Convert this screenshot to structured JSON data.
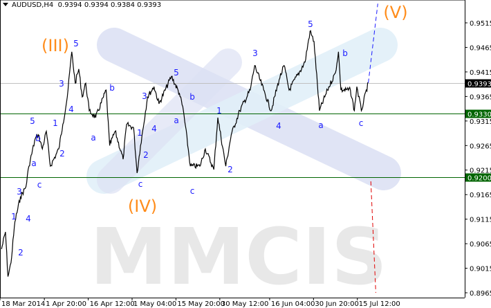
{
  "header": {
    "symbol": "AUDUSD,H4",
    "ohlc": "0.9394 0.9394 0.9384 0.9393",
    "menu_icon": "triangle-down-icon"
  },
  "watermark": {
    "text": "MMCIS",
    "colors": [
      "#e2f0f9",
      "#dde2f4",
      "#e8e8e8"
    ]
  },
  "colors": {
    "price": "#000000",
    "support": "#006400",
    "bid_line": "#c0c0c0",
    "wave_minor": "#1a1aff",
    "wave_major": "#ff8c1a",
    "forecast_up": "#1a1aff",
    "forecast_down": "#e00000"
  },
  "chart_data": {
    "type": "line",
    "title": "AUDUSD,H4",
    "ylim": [
      0.8965,
      0.957
    ],
    "yticks": [
      "0.9515",
      "0.9465",
      "0.9415",
      "0.9365",
      "0.9315",
      "0.9265",
      "0.9215",
      "0.9165",
      "0.9115",
      "0.9065",
      "0.9015",
      "0.8965"
    ],
    "xticks": [
      {
        "date": "2014-03-18 00:00",
        "label": "18 Mar 2014"
      },
      {
        "date": "2014-04-01 20:00",
        "label": "1 Apr 20:00"
      },
      {
        "date": "2014-04-16 12:00",
        "label": "16 Apr 12:00"
      },
      {
        "date": "2014-05-01 04:00",
        "label": "1 May 04:00"
      },
      {
        "date": "2014-05-15 20:00",
        "label": "15 May 20:00"
      },
      {
        "date": "2014-05-30 12:00",
        "label": "30 May 12:00"
      },
      {
        "date": "2014-06-16 04:00",
        "label": "16 Jun 04:00"
      },
      {
        "date": "2014-06-30 20:00",
        "label": "30 Jun 20:00"
      },
      {
        "date": "2014-07-15 12:00",
        "label": "15 Jul 12:00"
      }
    ],
    "levels": [
      {
        "price": 0.933,
        "label": "0.9330",
        "kind": "support"
      },
      {
        "price": 0.92,
        "label": "0.9200",
        "kind": "support"
      },
      {
        "price": 0.9393,
        "label": "0.9393",
        "kind": "bid"
      }
    ],
    "series": [
      {
        "points": [
          [
            "2014-03-18 12:00",
            0.9054
          ],
          [
            "2014-03-19 20:00",
            0.9089
          ],
          [
            "2014-03-20 16:00",
            0.8998
          ],
          [
            "2014-03-21 16:00",
            0.9026
          ],
          [
            "2014-03-23 00:00",
            0.911
          ],
          [
            "2014-03-24 20:00",
            0.916
          ],
          [
            "2014-03-26 16:00",
            0.9181
          ],
          [
            "2014-03-27 16:00",
            0.9223
          ],
          [
            "2014-03-29 20:00",
            0.928
          ],
          [
            "2014-03-30 20:00",
            0.9287
          ],
          [
            "2014-04-01 04:00",
            0.9258
          ],
          [
            "2014-04-02 12:00",
            0.9294
          ],
          [
            "2014-04-03 20:00",
            0.9223
          ],
          [
            "2014-04-06 16:00",
            0.9258
          ],
          [
            "2014-04-08 00:00",
            0.9308
          ],
          [
            "2014-04-09 12:00",
            0.9364
          ],
          [
            "2014-04-11 00:00",
            0.9456
          ],
          [
            "2014-04-12 04:00",
            0.9392
          ],
          [
            "2014-04-13 08:00",
            0.9421
          ],
          [
            "2014-04-14 12:00",
            0.9364
          ],
          [
            "2014-04-15 16:00",
            0.9392
          ],
          [
            "2014-04-16 20:00",
            0.9336
          ],
          [
            "2014-04-19 00:00",
            0.9322
          ],
          [
            "2014-04-22 12:00",
            0.9378
          ],
          [
            "2014-04-23 16:00",
            0.9265
          ],
          [
            "2014-04-25 12:00",
            0.9294
          ],
          [
            "2014-04-28 04:00",
            0.9237
          ],
          [
            "2014-04-29 08:00",
            0.9308
          ],
          [
            "2014-05-01 16:00",
            0.9301
          ],
          [
            "2014-05-02 20:00",
            0.9209
          ],
          [
            "2014-05-04 00:00",
            0.9265
          ],
          [
            "2014-05-06 08:00",
            0.9364
          ],
          [
            "2014-05-08 12:00",
            0.9385
          ],
          [
            "2014-05-10 04:00",
            0.935
          ],
          [
            "2014-05-14 08:00",
            0.9406
          ],
          [
            "2014-05-17 00:00",
            0.9371
          ],
          [
            "2014-05-18 08:00",
            0.9336
          ],
          [
            "2014-05-20 16:00",
            0.9223
          ],
          [
            "2014-05-23 20:00",
            0.9223
          ],
          [
            "2014-05-25 16:00",
            0.9258
          ],
          [
            "2014-05-28 12:00",
            0.9216
          ],
          [
            "2014-05-29 20:00",
            0.9322
          ],
          [
            "2014-06-01 12:00",
            0.9223
          ],
          [
            "2014-06-03 08:00",
            0.9287
          ],
          [
            "2014-06-06 04:00",
            0.9336
          ],
          [
            "2014-06-09 16:00",
            0.9378
          ],
          [
            "2014-06-11 04:00",
            0.9428
          ],
          [
            "2014-06-14 04:00",
            0.9378
          ],
          [
            "2014-06-16 16:00",
            0.9336
          ],
          [
            "2014-06-19 08:00",
            0.9399
          ],
          [
            "2014-06-21 00:00",
            0.9428
          ],
          [
            "2014-06-22 16:00",
            0.9378
          ],
          [
            "2014-06-28 00:00",
            0.9435
          ],
          [
            "2014-06-29 16:00",
            0.9498
          ],
          [
            "2014-07-01 00:00",
            0.9477
          ],
          [
            "2014-07-02 20:00",
            0.9336
          ],
          [
            "2014-07-05 12:00",
            0.9378
          ],
          [
            "2014-07-08 04:00",
            0.9413
          ],
          [
            "2014-07-09 04:00",
            0.9456
          ],
          [
            "2014-07-10 00:00",
            0.9378
          ],
          [
            "2014-07-13 04:00",
            0.9378
          ],
          [
            "2014-07-14 12:00",
            0.9336
          ],
          [
            "2014-07-15 08:00",
            0.9385
          ],
          [
            "2014-07-16 20:00",
            0.9336
          ],
          [
            "2014-07-19 04:00",
            0.9393
          ]
        ]
      }
    ],
    "forecasts": [
      {
        "kind": "up",
        "points": [
          [
            "2014-07-19 04:00",
            0.9393
          ],
          [
            "2014-07-22 08:00",
            0.9554
          ]
        ]
      },
      {
        "kind": "down",
        "points": [
          [
            "2014-07-20 00:00",
            0.9192
          ],
          [
            "2014-07-21 16:00",
            0.8965
          ]
        ]
      }
    ],
    "wave_labels_major": [
      "(III)",
      "(IV)",
      "(V)"
    ],
    "wave_labels_minor": [
      "5",
      "3",
      "4",
      "5",
      "1",
      "b",
      "a",
      "b",
      "a",
      "2",
      "c",
      "3",
      "1",
      "4",
      "2",
      "5",
      "3",
      "b",
      "4",
      "a",
      "1",
      "2",
      "c",
      "c",
      "1",
      "2",
      "3",
      "5",
      "b",
      "4",
      "a",
      "c"
    ]
  }
}
